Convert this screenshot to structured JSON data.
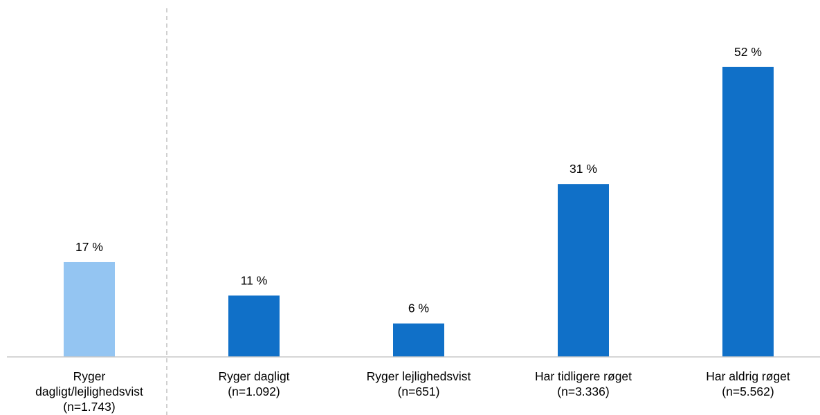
{
  "chart_data": {
    "type": "bar",
    "categories": [
      [
        "Ryger",
        "dagligt/lejlighedsvist",
        "(n=1.743)"
      ],
      [
        "Ryger dagligt",
        "(n=1.092)"
      ],
      [
        "Ryger lejlighedsvist",
        "(n=651)"
      ],
      [
        "Har tidligere røget",
        "(n=3.336)"
      ],
      [
        "Har aldrig  røget",
        "(n=5.562)"
      ]
    ],
    "values": [
      17,
      11,
      6,
      31,
      52
    ],
    "value_labels": [
      "17 %",
      "11 %",
      "6 %",
      "31 %",
      "52 %"
    ],
    "colors": [
      "#94C5F2",
      "#1070C8",
      "#1070C8",
      "#1070C8",
      "#1070C8"
    ],
    "title": "",
    "xlabel": "",
    "ylabel": "",
    "ylim": [
      0,
      55
    ],
    "grid": false,
    "legend": "none",
    "separator_after_category_index": 0
  }
}
